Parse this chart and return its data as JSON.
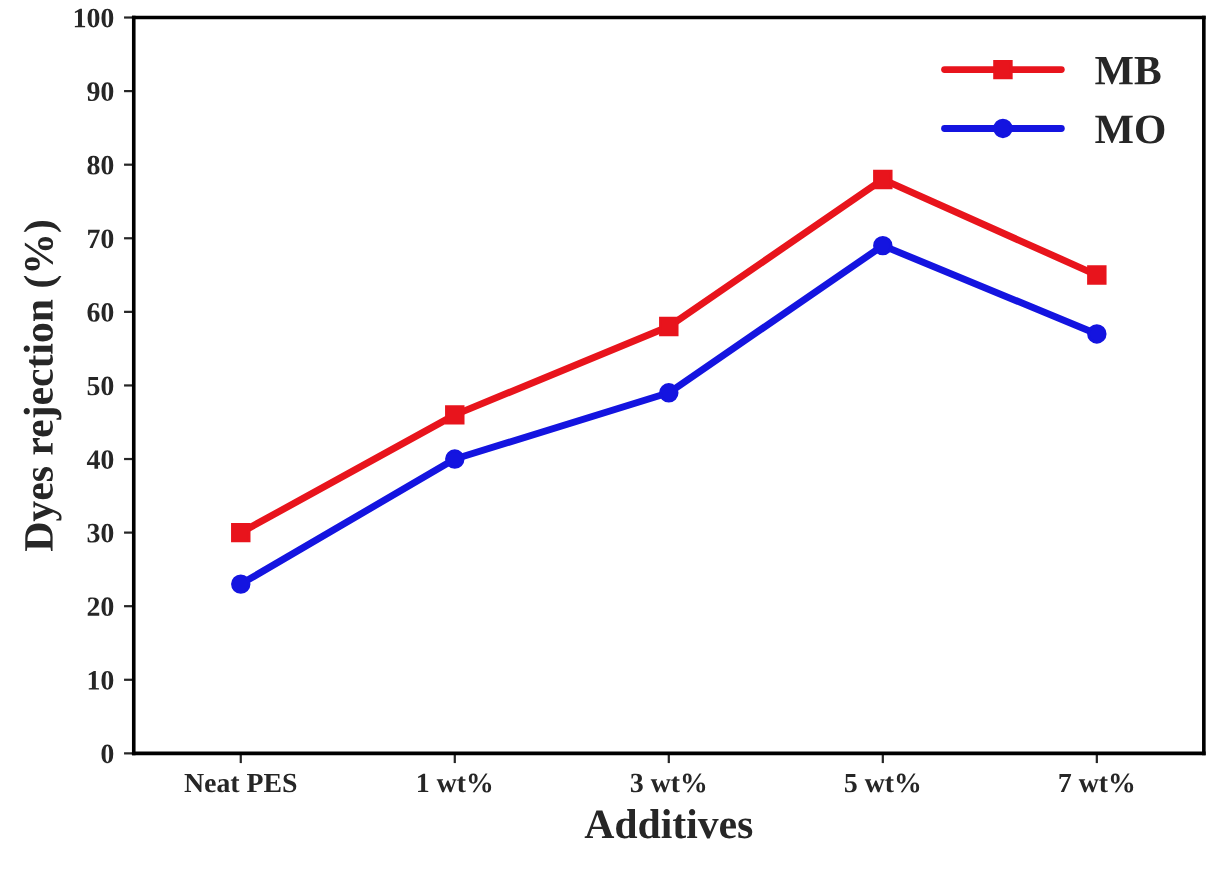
{
  "chart_data": {
    "type": "line",
    "xlabel": "Additives",
    "ylabel": "Dyes rejection (%)",
    "categories": [
      "Neat PES",
      "1 wt%",
      "3 wt%",
      "5 wt%",
      "7 wt%"
    ],
    "series": [
      {
        "name": "MB",
        "color": "#e8141c",
        "values": [
          30,
          46,
          58,
          78,
          65
        ],
        "marker": "square"
      },
      {
        "name": "MO",
        "color": "#1414e0",
        "values": [
          23,
          40,
          49,
          69,
          57
        ],
        "marker": "circle"
      }
    ],
    "ylim": [
      0,
      100
    ],
    "yticks": [
      0,
      10,
      20,
      30,
      40,
      50,
      60,
      70,
      80,
      90,
      100
    ],
    "legend": "top right",
    "grid": false,
    "line_style": "solid"
  }
}
